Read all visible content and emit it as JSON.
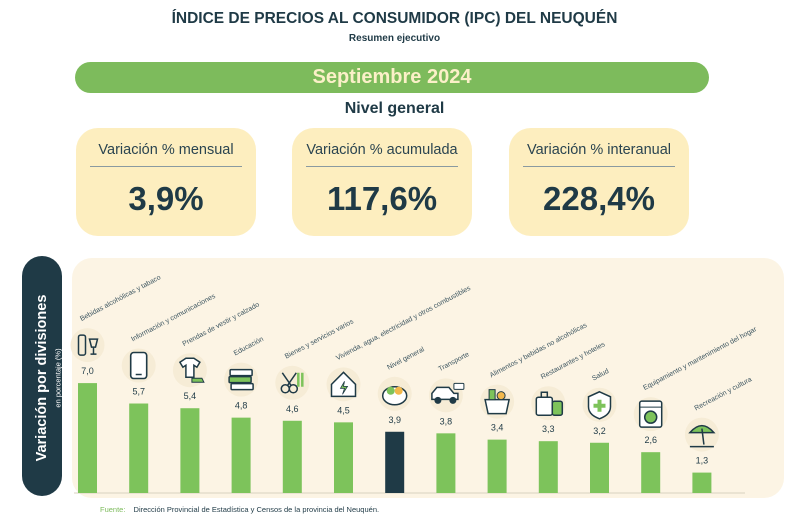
{
  "header": {
    "title": "ÍNDICE DE PRECIOS AL CONSUMIDOR (IPC) DEL NEUQUÉN",
    "subtitle": "Resumen ejecutivo"
  },
  "period": "Septiembre 2024",
  "level_title": "Nivel general",
  "cards": [
    {
      "label": "Variación % mensual",
      "value": "3,9%"
    },
    {
      "label": "Variación % acumulada",
      "value": "117,6%"
    },
    {
      "label": "Variación % interanual",
      "value": "228,4%"
    }
  ],
  "side_label": {
    "title": "Variación por divisiones",
    "subtitle": "en porcentaje (%)"
  },
  "source": {
    "label": "Fuente:",
    "text": "Dirección Provincial de Estadística y Censos de la provincia del Neuquén."
  },
  "colors": {
    "bar": "#7dc35b",
    "bar_highlight": "#1f3a46",
    "banner": "#7dbb5c",
    "card": "#fdeebf",
    "panel": "#fcf4e4"
  },
  "chart_data": {
    "type": "bar",
    "ylabel": "Variación por divisiones",
    "categories": [
      {
        "label": "Bebidas alcohólicas y tabaco",
        "value": 7.0,
        "display": "7,0",
        "icon": "bottle-glass-icon"
      },
      {
        "label": "Información y comunicaciones",
        "value": 5.7,
        "display": "5,7",
        "icon": "smartphone-icon"
      },
      {
        "label": "Prendas de vestir y calzado",
        "value": 5.4,
        "display": "5,4",
        "icon": "clothing-icon"
      },
      {
        "label": "Educación",
        "value": 4.8,
        "display": "4,8",
        "icon": "books-icon"
      },
      {
        "label": "Bienes y servicios varios",
        "value": 4.6,
        "display": "4,6",
        "icon": "scissors-brush-icon"
      },
      {
        "label": "Vivienda, agua, electricidad y otros combustibles",
        "value": 4.5,
        "display": "4,5",
        "icon": "house-utilities-icon"
      },
      {
        "label": "Nivel general",
        "value": 3.9,
        "display": "3,9",
        "icon": "food-basket-icon",
        "highlight": true
      },
      {
        "label": "Transporte",
        "value": 3.8,
        "display": "3,8",
        "icon": "car-icon"
      },
      {
        "label": "Alimentos y bebidas no alcohólicas",
        "value": 3.4,
        "display": "3,4",
        "icon": "groceries-icon"
      },
      {
        "label": "Restaurantes y hoteles",
        "value": 3.3,
        "display": "3,3",
        "icon": "luggage-icon"
      },
      {
        "label": "Salud",
        "value": 3.2,
        "display": "3,2",
        "icon": "health-shield-icon"
      },
      {
        "label": "Equipamiento y mantenimiento del hogar",
        "value": 2.6,
        "display": "2,6",
        "icon": "washing-machine-icon"
      },
      {
        "label": "Recreación y cultura",
        "value": 1.3,
        "display": "1,3",
        "icon": "beach-umbrella-icon"
      }
    ]
  }
}
